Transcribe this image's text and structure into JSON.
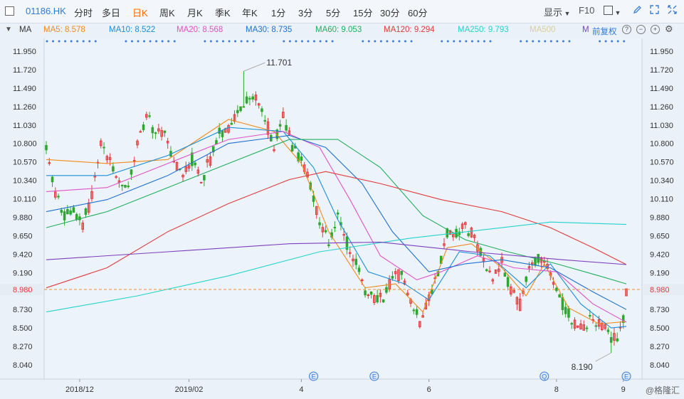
{
  "toolbar": {
    "symbol": "01186.HK",
    "periods": [
      "分时",
      "多日",
      "日K",
      "周K",
      "月K",
      "季K",
      "年K",
      "1分",
      "3分",
      "5分",
      "15分",
      "30分",
      "60分"
    ],
    "active_period": "日K",
    "display_label": "显示",
    "f10_label": "F10",
    "icons": [
      "square-icon",
      "pencil-icon",
      "expand-icon",
      "fullscreen-icon"
    ]
  },
  "ma_bar": {
    "label": "MA",
    "items": [
      {
        "text": "MA5: 8.578",
        "color": "#f08a1c"
      },
      {
        "text": "MA10: 8.522",
        "color": "#1c8ed8"
      },
      {
        "text": "MA20: 8.568",
        "color": "#e052c8"
      },
      {
        "text": "MA30: 8.735",
        "color": "#1e6fd0"
      },
      {
        "text": "MA60: 9.053",
        "color": "#1fae5c"
      },
      {
        "text": "MA120: 9.294",
        "color": "#e03a3a"
      },
      {
        "text": "MA250: 9.793",
        "color": "#22d3d0"
      },
      {
        "text": "MA500",
        "color": "#d8cf9a"
      },
      {
        "text": "M",
        "color": "#7a3fbf"
      }
    ],
    "adjust_label": "前复权"
  },
  "colors": {
    "up": "#e23a3a",
    "down": "#2da82d",
    "current_price_line": "#f09030",
    "price_tag_bg": "#e23a3a"
  },
  "watermark": "@格隆汇",
  "chart_data": {
    "type": "candlestick",
    "ylim": [
      7.94,
      12.06
    ],
    "yticks": [
      11.95,
      11.72,
      11.49,
      11.26,
      11.03,
      10.8,
      10.57,
      10.34,
      10.11,
      9.88,
      9.65,
      9.42,
      9.19,
      8.98,
      8.73,
      8.5,
      8.27,
      8.04
    ],
    "ytick_labels": [
      "11.950",
      "11.720",
      "11.490",
      "11.260",
      "11.030",
      "10.800",
      "10.570",
      "10.340",
      "10.110",
      "9.880",
      "9.650",
      "9.420",
      "9.190",
      "8.980",
      "8.730",
      "8.500",
      "8.270",
      "8.040"
    ],
    "current_price": 8.98,
    "current_price_label": "8.980",
    "xtick_labels": [
      "2018/12",
      "2019/02",
      "4",
      "6",
      "8",
      "9"
    ],
    "xtick_index": [
      11,
      47,
      84,
      126,
      168,
      190
    ],
    "annotations": [
      {
        "text": "11.701",
        "index": 65,
        "value": 11.701
      },
      {
        "text": "8.190",
        "index": 186,
        "value": 8.19
      }
    ],
    "event_markers": [
      {
        "text": "E",
        "index": 88
      },
      {
        "text": "E",
        "index": 108
      },
      {
        "text": "Q",
        "index": 164
      },
      {
        "text": "E",
        "index": 191
      }
    ],
    "keypoints": [
      [
        0,
        10.7
      ],
      [
        3,
        10.2
      ],
      [
        6,
        9.9
      ],
      [
        9,
        9.95
      ],
      [
        12,
        9.8
      ],
      [
        15,
        10.15
      ],
      [
        18,
        10.8
      ],
      [
        21,
        10.6
      ],
      [
        24,
        10.3
      ],
      [
        27,
        10.25
      ],
      [
        30,
        10.8
      ],
      [
        33,
        11.15
      ],
      [
        36,
        10.95
      ],
      [
        39,
        10.9
      ],
      [
        42,
        10.55
      ],
      [
        45,
        10.45
      ],
      [
        48,
        10.6
      ],
      [
        51,
        10.35
      ],
      [
        54,
        10.6
      ],
      [
        57,
        10.9
      ],
      [
        60,
        11.0
      ],
      [
        63,
        11.2
      ],
      [
        66,
        11.3
      ],
      [
        69,
        11.4
      ],
      [
        72,
        11.1
      ],
      [
        75,
        10.75
      ],
      [
        78,
        11.15
      ],
      [
        81,
        10.8
      ],
      [
        84,
        10.6
      ],
      [
        87,
        10.3
      ],
      [
        90,
        9.8
      ],
      [
        93,
        9.55
      ],
      [
        96,
        9.9
      ],
      [
        99,
        9.55
      ],
      [
        102,
        9.3
      ],
      [
        105,
        8.95
      ],
      [
        108,
        8.85
      ],
      [
        111,
        8.9
      ],
      [
        114,
        9.1
      ],
      [
        117,
        9.2
      ],
      [
        120,
        8.85
      ],
      [
        123,
        8.55
      ],
      [
        126,
        8.9
      ],
      [
        129,
        9.2
      ],
      [
        132,
        9.7
      ],
      [
        135,
        9.65
      ],
      [
        138,
        9.8
      ],
      [
        141,
        9.6
      ],
      [
        144,
        9.35
      ],
      [
        147,
        9.15
      ],
      [
        150,
        9.3
      ],
      [
        153,
        8.95
      ],
      [
        156,
        8.8
      ],
      [
        159,
        9.25
      ],
      [
        162,
        9.4
      ],
      [
        165,
        9.3
      ],
      [
        168,
        8.95
      ],
      [
        171,
        8.75
      ],
      [
        174,
        8.55
      ],
      [
        177,
        8.5
      ],
      [
        180,
        8.6
      ],
      [
        183,
        8.55
      ],
      [
        186,
        8.35
      ],
      [
        188,
        8.4
      ],
      [
        190,
        8.65
      ],
      [
        191,
        8.98
      ]
    ],
    "n_candles": 192,
    "ma_lines": [
      {
        "name": "MA5",
        "color": "#f08a1c",
        "points": [
          [
            0,
            10.6
          ],
          [
            20,
            10.55
          ],
          [
            40,
            10.6
          ],
          [
            60,
            11.1
          ],
          [
            75,
            10.95
          ],
          [
            84,
            10.55
          ],
          [
            93,
            9.7
          ],
          [
            105,
            9.0
          ],
          [
            115,
            9.05
          ],
          [
            124,
            8.7
          ],
          [
            132,
            9.5
          ],
          [
            140,
            9.55
          ],
          [
            150,
            9.25
          ],
          [
            158,
            8.9
          ],
          [
            164,
            9.3
          ],
          [
            172,
            8.75
          ],
          [
            182,
            8.55
          ],
          [
            191,
            8.58
          ]
        ]
      },
      {
        "name": "MA10",
        "color": "#1c8ed8",
        "points": [
          [
            0,
            10.4
          ],
          [
            20,
            10.4
          ],
          [
            40,
            10.65
          ],
          [
            60,
            11.0
          ],
          [
            78,
            10.95
          ],
          [
            88,
            10.5
          ],
          [
            96,
            9.85
          ],
          [
            106,
            9.2
          ],
          [
            118,
            9.05
          ],
          [
            126,
            8.85
          ],
          [
            136,
            9.45
          ],
          [
            146,
            9.4
          ],
          [
            158,
            9.0
          ],
          [
            166,
            9.3
          ],
          [
            176,
            8.8
          ],
          [
            186,
            8.5
          ],
          [
            191,
            8.52
          ]
        ]
      },
      {
        "name": "MA20",
        "color": "#e052c8",
        "points": [
          [
            0,
            10.2
          ],
          [
            20,
            10.25
          ],
          [
            40,
            10.55
          ],
          [
            60,
            10.85
          ],
          [
            78,
            10.95
          ],
          [
            90,
            10.75
          ],
          [
            100,
            10.1
          ],
          [
            110,
            9.4
          ],
          [
            122,
            9.1
          ],
          [
            130,
            9.2
          ],
          [
            142,
            9.4
          ],
          [
            154,
            9.25
          ],
          [
            168,
            9.2
          ],
          [
            180,
            8.8
          ],
          [
            191,
            8.57
          ]
        ]
      },
      {
        "name": "MA30",
        "color": "#1e6fd0",
        "points": [
          [
            0,
            9.95
          ],
          [
            20,
            10.1
          ],
          [
            40,
            10.4
          ],
          [
            60,
            10.8
          ],
          [
            80,
            10.9
          ],
          [
            92,
            10.75
          ],
          [
            104,
            10.3
          ],
          [
            114,
            9.7
          ],
          [
            126,
            9.2
          ],
          [
            138,
            9.3
          ],
          [
            150,
            9.35
          ],
          [
            166,
            9.25
          ],
          [
            180,
            8.95
          ],
          [
            191,
            8.73
          ]
        ]
      },
      {
        "name": "MA60",
        "color": "#1fae5c",
        "points": [
          [
            0,
            9.75
          ],
          [
            20,
            9.95
          ],
          [
            40,
            10.25
          ],
          [
            60,
            10.55
          ],
          [
            80,
            10.85
          ],
          [
            96,
            10.85
          ],
          [
            110,
            10.5
          ],
          [
            124,
            9.9
          ],
          [
            138,
            9.6
          ],
          [
            152,
            9.45
          ],
          [
            168,
            9.3
          ],
          [
            182,
            9.15
          ],
          [
            191,
            9.05
          ]
        ]
      },
      {
        "name": "MA120",
        "color": "#e03a3a",
        "points": [
          [
            0,
            9.0
          ],
          [
            20,
            9.25
          ],
          [
            40,
            9.7
          ],
          [
            60,
            10.05
          ],
          [
            80,
            10.35
          ],
          [
            92,
            10.45
          ],
          [
            110,
            10.3
          ],
          [
            130,
            10.1
          ],
          [
            150,
            9.95
          ],
          [
            166,
            9.75
          ],
          [
            180,
            9.5
          ],
          [
            191,
            9.29
          ]
        ]
      },
      {
        "name": "MA250",
        "color": "#22d3d0",
        "points": [
          [
            0,
            8.7
          ],
          [
            30,
            8.9
          ],
          [
            60,
            9.15
          ],
          [
            90,
            9.45
          ],
          [
            120,
            9.62
          ],
          [
            150,
            9.75
          ],
          [
            166,
            9.82
          ],
          [
            191,
            9.79
          ]
        ]
      },
      {
        "name": "M",
        "color": "#7a3fbf",
        "points": [
          [
            0,
            9.35
          ],
          [
            40,
            9.45
          ],
          [
            80,
            9.55
          ],
          [
            110,
            9.57
          ],
          [
            140,
            9.45
          ],
          [
            170,
            9.35
          ],
          [
            191,
            9.29
          ]
        ]
      }
    ]
  }
}
